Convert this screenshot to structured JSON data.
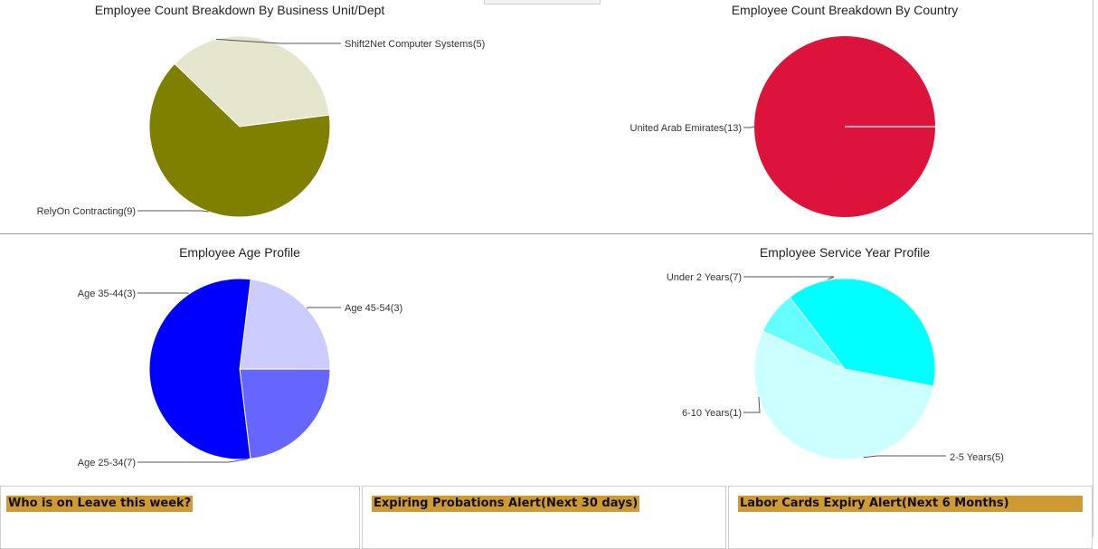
{
  "chart_data": [
    {
      "type": "pie",
      "title": "Employee Count Breakdown By Business Unit/Dept",
      "slices": [
        {
          "label": "Shift2Net Computer Systems(5)",
          "value": 5,
          "color": "#e6e6cf"
        },
        {
          "label": "RelyOn Contracting(9)",
          "value": 9,
          "color": "#808000"
        }
      ]
    },
    {
      "type": "pie",
      "title": "Employee Count Breakdown By Country",
      "slices": [
        {
          "label": "United Arab Emirates(13)",
          "value": 13,
          "color": "#dc143c"
        }
      ]
    },
    {
      "type": "pie",
      "title": "Employee Age Profile",
      "slices": [
        {
          "label": "Age 45-54(3)",
          "value": 3,
          "color": "#ccccff"
        },
        {
          "label": "Age 35-44(3)",
          "value": 3,
          "color": "#6666ff"
        },
        {
          "label": "Age 25-34(7)",
          "value": 7,
          "color": "#0000ff"
        }
      ]
    },
    {
      "type": "pie",
      "title": "Employee Service Year Profile",
      "slices": [
        {
          "label": "Under 2 Years(7)",
          "value": 7,
          "color": "#ccffff"
        },
        {
          "label": "6-10 Years(1)",
          "value": 1,
          "color": "#66ffff"
        },
        {
          "label": "2-5 Years(5)",
          "value": 5,
          "color": "#00ffff"
        }
      ]
    }
  ],
  "panels": [
    {
      "title": "Who is on Leave this week?"
    },
    {
      "title": "Expiring Probations Alert(Next 30 days)"
    },
    {
      "title": "Labor Cards Expiry Alert(Next 6 Months)"
    }
  ],
  "colors": {
    "panel_header": "#cf9a33",
    "divider": "#9a9a9a"
  }
}
